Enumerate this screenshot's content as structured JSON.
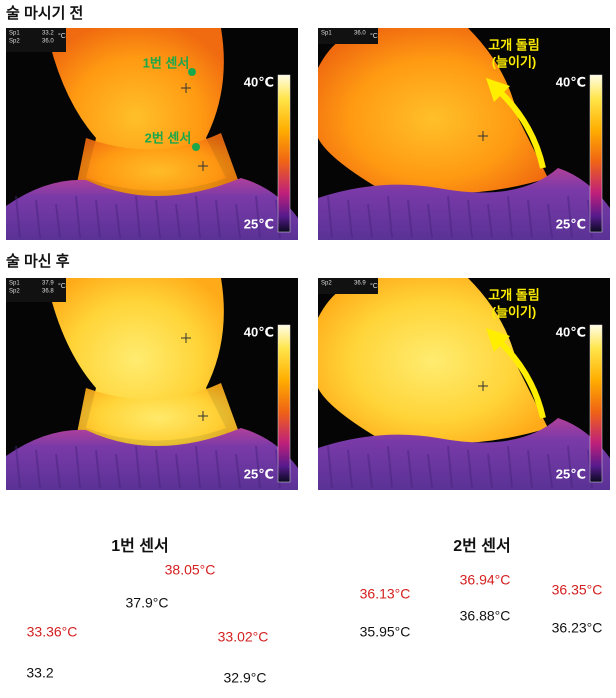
{
  "sections": [
    {
      "title": "술 마시기 전"
    },
    {
      "title": "술 마신 후"
    }
  ],
  "panels": [
    {
      "readouts": [
        {
          "label": "Sp1",
          "value": "33.2"
        },
        {
          "label": "Sp2",
          "value": "36.0"
        }
      ],
      "unit": "°C",
      "annotations": [
        "1번 센서",
        "2번 센서"
      ],
      "scale_max": "40℃",
      "scale_min": "25℃"
    },
    {
      "readouts": [
        {
          "label": "Sp1",
          "value": "36.0"
        }
      ],
      "unit": "°C",
      "arrow_label": [
        "고개 돌림",
        "(늘이기)"
      ],
      "scale_max": "40℃",
      "scale_min": "25℃"
    },
    {
      "readouts": [
        {
          "label": "Sp1",
          "value": "37.9"
        },
        {
          "label": "Sp2",
          "value": "36.8"
        }
      ],
      "unit": "°C",
      "scale_max": "40℃",
      "scale_min": "25℃"
    },
    {
      "readouts": [
        {
          "label": "Sp2",
          "value": "36.9"
        }
      ],
      "unit": "°C",
      "arrow_label": [
        "고개 돌림",
        "(늘이기)"
      ],
      "scale_max": "40℃",
      "scale_min": "25℃"
    }
  ],
  "comparison": [
    {
      "title": "1번 센서",
      "readings": [
        {
          "value": "38.05°C",
          "reference": "37.9°C"
        },
        {
          "value": "33.36°C",
          "reference": "33.2"
        },
        {
          "value": "33.02°C",
          "reference": "32.9°C"
        }
      ]
    },
    {
      "title": "2번 센서",
      "readings": [
        {
          "value": "36.13°C",
          "reference": "35.95°C"
        },
        {
          "value": "36.94°C",
          "reference": "36.88°C"
        },
        {
          "value": "36.35°C",
          "reference": "36.23°C"
        }
      ]
    }
  ]
}
